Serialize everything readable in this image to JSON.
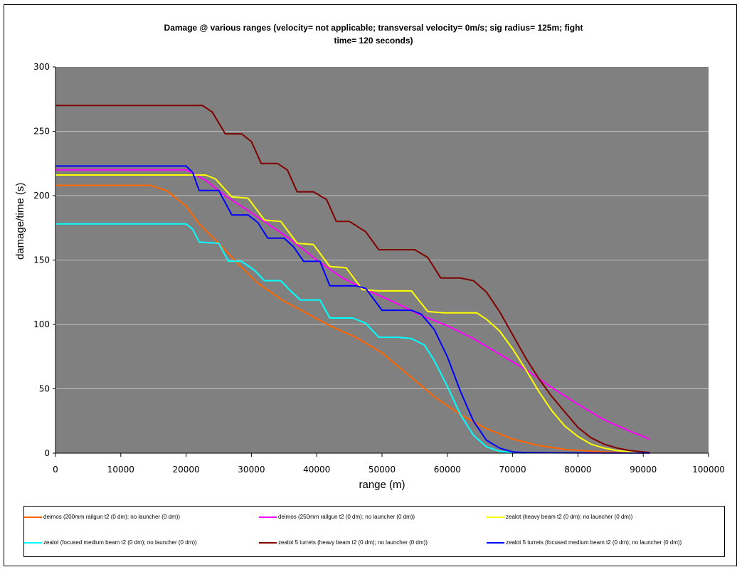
{
  "chart_data": {
    "type": "line",
    "title": "Damage @ various ranges (velocity= not applicable; transversal velocity= 0m/s; sig radius= 125m; fight time= 120 seconds)",
    "title_lines": [
      "Damage @ various ranges (velocity= not applicable; transversal velocity= 0m/s; sig radius= 125m; fight",
      "time= 120 seconds)"
    ],
    "xlabel": "range (m)",
    "ylabel": "damage/time (s)",
    "xlim": [
      0,
      100000
    ],
    "ylim": [
      0,
      300
    ],
    "xticks": [
      0,
      10000,
      20000,
      30000,
      40000,
      50000,
      60000,
      70000,
      80000,
      90000,
      100000
    ],
    "yticks": [
      0,
      50,
      100,
      150,
      200,
      250,
      300
    ],
    "grid": "horizontal",
    "legend_position": "bottom",
    "plot_background": "#808080",
    "series": [
      {
        "name": "deimos (200mm railgun t2 (0 dm); no launcher (0 dm))",
        "color": "#ff6600",
        "x": [
          0,
          14500,
          17000,
          20000,
          22000,
          25000,
          28000,
          31000,
          35000,
          38000,
          42000,
          46000,
          50000,
          54000,
          58000,
          62000,
          66000,
          70000,
          74000,
          78000,
          82000,
          86000,
          88000,
          91000
        ],
        "y": [
          208,
          208,
          204,
          192,
          178,
          163,
          147,
          132,
          118,
          110,
          99,
          90,
          78,
          61,
          44,
          30,
          19,
          11,
          6,
          3,
          1.5,
          0.6,
          0.3,
          0.2
        ]
      },
      {
        "name": "deimos (250mm railgun t2 (0 dm); no launcher (0 dm))",
        "color": "#ff00ff",
        "x": [
          0,
          20000,
          23000,
          26000,
          29000,
          32000,
          36000,
          40000,
          44000,
          48000,
          52000,
          56000,
          60000,
          64000,
          68000,
          72000,
          76000,
          80000,
          84000,
          88000,
          91000
        ],
        "y": [
          220,
          220,
          212,
          200,
          190,
          180,
          166,
          150,
          136,
          126,
          117,
          107,
          99,
          89,
          77,
          65,
          51,
          38,
          26,
          17,
          11
        ]
      },
      {
        "name": "zealot (heavy beam t2 (0 dm); no launcher (0 dm))",
        "color": "#ffff00",
        "x": [
          0,
          23000,
          24500,
          27000,
          29500,
          32000,
          34500,
          37000,
          39500,
          42000,
          44500,
          47000,
          49500,
          52000,
          54500,
          57000,
          59500,
          62000,
          64500,
          66000,
          68000,
          70000,
          72000,
          74000,
          76000,
          78000,
          80000,
          82000,
          84000,
          86000,
          88000,
          91000
        ],
        "y": [
          216,
          216,
          213,
          199,
          198,
          181,
          180,
          163,
          162,
          145,
          144,
          127,
          126,
          126,
          126,
          110,
          109,
          109,
          109,
          104,
          95,
          81,
          65,
          48,
          33,
          21,
          13,
          7,
          4,
          2,
          1,
          0.3
        ]
      },
      {
        "name": "zealot (focused medium beam t2 (0 dm); no launcher (0 dm))",
        "color": "#00ffff",
        "x": [
          0,
          20000,
          21000,
          22000,
          25000,
          26500,
          28500,
          30500,
          32000,
          34500,
          36000,
          37500,
          40500,
          42000,
          45500,
          47500,
          49500,
          52500,
          54500,
          56500,
          58000,
          60000,
          62000,
          64000,
          66000,
          68000,
          70000,
          72000
        ],
        "y": [
          178,
          178,
          174,
          164,
          163,
          149,
          149,
          142,
          134,
          134,
          126,
          119,
          119,
          105,
          105,
          101,
          90,
          90,
          89,
          84,
          72,
          52,
          30,
          14,
          5,
          1.5,
          0.4,
          0.1
        ]
      },
      {
        "name": "zealot 5 turrets (heavy beam t2 (0 dm); no launcher (0 dm))",
        "color": "#800000",
        "x": [
          0,
          22500,
          24000,
          26000,
          28500,
          30000,
          31500,
          34000,
          35500,
          37000,
          39500,
          41500,
          43000,
          45000,
          47500,
          49500,
          51000,
          55000,
          57000,
          59000,
          62000,
          64000,
          66000,
          68000,
          70000,
          72000,
          74000,
          76000,
          78000,
          80000,
          82000,
          84000,
          86000,
          88000,
          91000
        ],
        "y": [
          270,
          270,
          265,
          248,
          248,
          242,
          225,
          225,
          220,
          203,
          203,
          197,
          180,
          180,
          172,
          158,
          158,
          158,
          152,
          136,
          136,
          134,
          125,
          110,
          92,
          74,
          58,
          44,
          32,
          20,
          12,
          7,
          4,
          2,
          0.5
        ]
      },
      {
        "name": "zealot 5 turrets (focused medium beam t2 (0 dm); no launcher (0 dm))",
        "color": "#0000ff",
        "x": [
          0,
          20000,
          21000,
          22000,
          25000,
          27000,
          29500,
          31000,
          32500,
          35000,
          36500,
          38000,
          40500,
          42000,
          46000,
          47500,
          50000,
          54500,
          56000,
          58000,
          60000,
          62000,
          64000,
          66000,
          68000,
          70000,
          72000,
          76000,
          80000,
          85000,
          91000
        ],
        "y": [
          223,
          223,
          218,
          204,
          204,
          185,
          185,
          179,
          167,
          167,
          160,
          149,
          149,
          130,
          130,
          128,
          111,
          111,
          108,
          96,
          75,
          48,
          25,
          10,
          4,
          1,
          0.5,
          0.3,
          0.2,
          0.1,
          0.1
        ]
      }
    ]
  }
}
